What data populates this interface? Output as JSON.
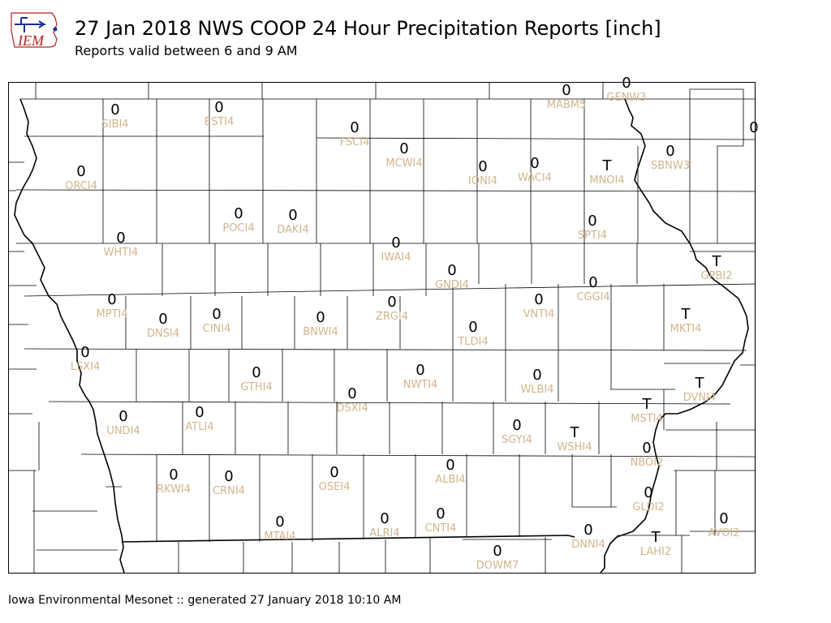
{
  "header": {
    "title": "27 Jan 2018 NWS COOP 24 Hour Precipitation Reports [inch]",
    "subtitle": "Reports valid between 6 and 9 AM",
    "logo_text": "IEM"
  },
  "footer": "Iowa Environmental Mesonet :: generated 27 January 2018 10:10 AM",
  "colors": {
    "value": "#000000",
    "station_id": "#d2b48c",
    "logo_text": "#b22222",
    "logo_icon": "#1a2e9c"
  },
  "stations": [
    {
      "id": "SIBI4",
      "value": "0"
    },
    {
      "id": "ESTI4",
      "value": "0"
    },
    {
      "id": "FSCI4",
      "value": "0"
    },
    {
      "id": "MCWI4",
      "value": "0"
    },
    {
      "id": "MABM5",
      "value": "0"
    },
    {
      "id": "GENW3",
      "value": "0"
    },
    {
      "id": "ORCI4",
      "value": "0"
    },
    {
      "id": "IONI4",
      "value": "0"
    },
    {
      "id": "WACI4",
      "value": "0"
    },
    {
      "id": "MNOI4",
      "value": "T"
    },
    {
      "id": "SBNW3",
      "value": "0"
    },
    {
      "id": "POCI4",
      "value": "0"
    },
    {
      "id": "DAKI4",
      "value": "0"
    },
    {
      "id": "SPTI4",
      "value": "0"
    },
    {
      "id": "WHTI4",
      "value": "0"
    },
    {
      "id": "IWAI4",
      "value": "0"
    },
    {
      "id": "GNDI4",
      "value": "0"
    },
    {
      "id": "GPBI2",
      "value": "T"
    },
    {
      "id": "CGGI4",
      "value": "0"
    },
    {
      "id": "MPTI4",
      "value": "0"
    },
    {
      "id": "VNTI4",
      "value": "0"
    },
    {
      "id": "DNSI4",
      "value": "0"
    },
    {
      "id": "CINI4",
      "value": "0"
    },
    {
      "id": "BNWI4",
      "value": "0"
    },
    {
      "id": "ZRGI4",
      "value": "0"
    },
    {
      "id": "MKTI4",
      "value": "T"
    },
    {
      "id": "TLDI4",
      "value": "0"
    },
    {
      "id": "LSXI4",
      "value": "0"
    },
    {
      "id": "NWTI4",
      "value": "0"
    },
    {
      "id": "GTHI4",
      "value": "0"
    },
    {
      "id": "WLBI4",
      "value": "0"
    },
    {
      "id": "DVNI4",
      "value": "T"
    },
    {
      "id": "DSXI4",
      "value": "0"
    },
    {
      "id": "MSTI4",
      "value": "T"
    },
    {
      "id": "UNDI4",
      "value": "0"
    },
    {
      "id": "ATLI4",
      "value": "0"
    },
    {
      "id": "SGYI4",
      "value": "0"
    },
    {
      "id": "WSHI4",
      "value": "T"
    },
    {
      "id": "NBOI2",
      "value": "0"
    },
    {
      "id": "ALBI4",
      "value": "0"
    },
    {
      "id": "RKWI4",
      "value": "0"
    },
    {
      "id": "CRNI4",
      "value": "0"
    },
    {
      "id": "OSEI4",
      "value": "0"
    },
    {
      "id": "GLDI2",
      "value": "0"
    },
    {
      "id": "MTAI4",
      "value": "0"
    },
    {
      "id": "ALRI4",
      "value": "0"
    },
    {
      "id": "CNTI4",
      "value": "0"
    },
    {
      "id": "AVOI2",
      "value": "0"
    },
    {
      "id": "DNNI4",
      "value": "0"
    },
    {
      "id": "LAHI2",
      "value": "T"
    },
    {
      "id": "DOWM7",
      "value": "0"
    },
    {
      "id": "",
      "value": "0"
    }
  ]
}
